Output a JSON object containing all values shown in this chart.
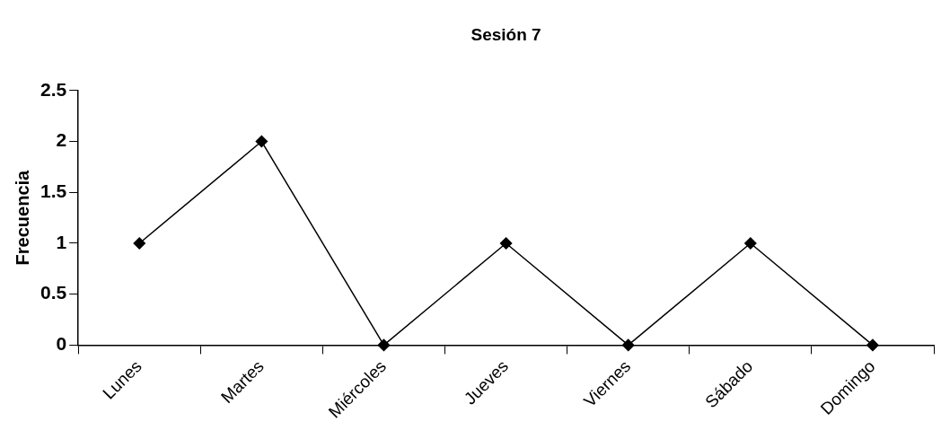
{
  "chart_data": {
    "type": "line",
    "title": "Sesión 7",
    "ylabel": "Frecuencia",
    "categories": [
      "Lunes",
      "Martes",
      "Miércoles",
      "Jueves",
      "Viernes",
      "Sábado",
      "Domingo"
    ],
    "series": [
      {
        "color": "#000000",
        "values": [
          1,
          2,
          0,
          1,
          0,
          1,
          0
        ]
      }
    ],
    "ylim": [
      0,
      2.5
    ],
    "yticks": [
      0,
      0.5,
      1,
      1.5,
      2,
      2.5
    ],
    "grid": false,
    "legend": false,
    "marker": "diamond",
    "line_style": "solid"
  }
}
